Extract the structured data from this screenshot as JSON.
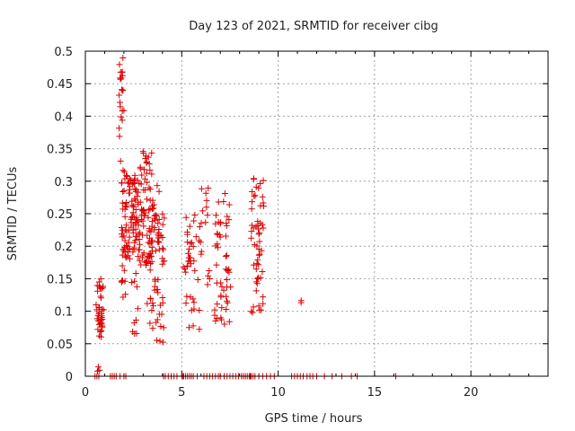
{
  "chart_data": {
    "type": "scatter",
    "title": "Day 123 of 2021, SRMTID for receiver cibg",
    "xlabel": "GPS time / hours",
    "ylabel": "SRMTID / TECUs",
    "xlim": [
      0,
      24
    ],
    "ylim": [
      0,
      0.5
    ],
    "xticks": [
      0,
      5,
      10,
      15,
      20
    ],
    "yticks": [
      0,
      0.05,
      0.1,
      0.15,
      0.2,
      0.25,
      0.3,
      0.35,
      0.4,
      0.45,
      0.5
    ],
    "grid": true,
    "legend": "none",
    "marker": "+",
    "color": "#dd0000",
    "clusters": [
      {
        "x_range": [
          0.55,
          0.95
        ],
        "y_range": [
          0.06,
          0.15
        ],
        "count": 40
      },
      {
        "x_range": [
          0.6,
          0.75
        ],
        "y_range": [
          0.0,
          0.015
        ],
        "count": 3
      },
      {
        "x_range": [
          1.75,
          2.0
        ],
        "y_range": [
          0.33,
          0.49
        ],
        "count": 22
      },
      {
        "x_range": [
          1.85,
          2.15
        ],
        "y_range": [
          0.12,
          0.32
        ],
        "count": 35
      },
      {
        "x_range": [
          2.1,
          2.75
        ],
        "y_range": [
          0.18,
          0.31
        ],
        "count": 70
      },
      {
        "x_range": [
          2.4,
          2.75
        ],
        "y_range": [
          0.06,
          0.16
        ],
        "count": 10
      },
      {
        "x_range": [
          2.75,
          3.5
        ],
        "y_range": [
          0.17,
          0.35
        ],
        "count": 75
      },
      {
        "x_range": [
          3.2,
          4.1
        ],
        "y_range": [
          0.05,
          0.25
        ],
        "count": 60
      },
      {
        "x_range": [
          3.45,
          3.85
        ],
        "y_range": [
          0.2,
          0.31
        ],
        "count": 15
      },
      {
        "x_range": [
          5.05,
          5.5
        ],
        "y_range": [
          0.16,
          0.22
        ],
        "count": 12
      },
      {
        "x_range": [
          5.2,
          6.0
        ],
        "y_range": [
          0.07,
          0.26
        ],
        "count": 30
      },
      {
        "x_range": [
          6.0,
          6.5
        ],
        "y_range": [
          0.13,
          0.31
        ],
        "count": 15
      },
      {
        "x_range": [
          6.7,
          7.4
        ],
        "y_range": [
          0.08,
          0.29
        ],
        "count": 40
      },
      {
        "x_range": [
          7.3,
          7.55
        ],
        "y_range": [
          0.08,
          0.28
        ],
        "count": 12
      },
      {
        "x_range": [
          8.6,
          9.25
        ],
        "y_range": [
          0.09,
          0.31
        ],
        "count": 55
      },
      {
        "x_range": [
          11.1,
          11.25
        ],
        "y_range": [
          0.105,
          0.12
        ],
        "count": 2
      }
    ],
    "zero_points_x": [
      0.5,
      0.6,
      0.7,
      1.3,
      1.4,
      1.5,
      1.6,
      1.8,
      2.0,
      2.1,
      4.05,
      4.15,
      4.3,
      4.45,
      4.6,
      4.75,
      5.0,
      5.05,
      5.1,
      5.2,
      5.3,
      5.4,
      5.5,
      5.6,
      5.8,
      6.15,
      6.3,
      6.45,
      6.6,
      6.75,
      6.9,
      7.0,
      7.2,
      7.35,
      7.5,
      7.65,
      7.8,
      7.95,
      8.1,
      8.2,
      8.3,
      8.4,
      8.5,
      8.55,
      8.6,
      8.7,
      8.8,
      9.0,
      9.2,
      9.4,
      9.6,
      9.8,
      10.7,
      10.85,
      11.0,
      11.15,
      11.3,
      11.5,
      11.65,
      11.8,
      12.0,
      12.4,
      12.8,
      13.3,
      13.8,
      14.1,
      16.1
    ]
  }
}
